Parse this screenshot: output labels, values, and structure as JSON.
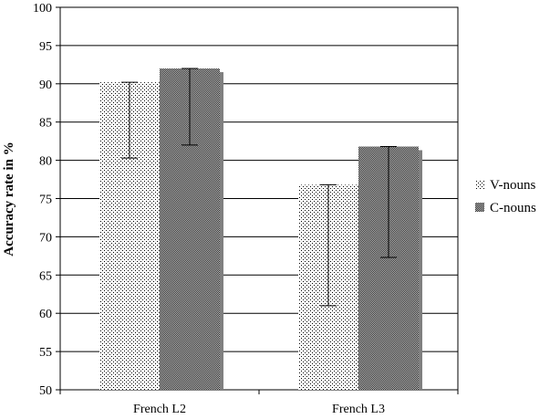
{
  "chart_data": {
    "type": "bar",
    "title": "",
    "xlabel": "",
    "ylabel": "Accuracy rate in %",
    "categories": [
      "French L2",
      "French L3"
    ],
    "ylim": [
      50,
      100
    ],
    "yticks": [
      50,
      55,
      60,
      65,
      70,
      75,
      80,
      85,
      90,
      95,
      100
    ],
    "grid": "horizontal",
    "legend_position": "right",
    "series": [
      {
        "name": "V-nouns",
        "values": [
          90.2,
          76.8
        ],
        "error_low": [
          80.3,
          61.0
        ],
        "error_high": [
          90.2,
          76.8
        ],
        "pattern": "dots"
      },
      {
        "name": "C-nouns",
        "values": [
          92.0,
          81.8
        ],
        "error_low": [
          82.0,
          67.3
        ],
        "error_high": [
          92.0,
          81.8
        ],
        "pattern": "checker"
      }
    ]
  }
}
